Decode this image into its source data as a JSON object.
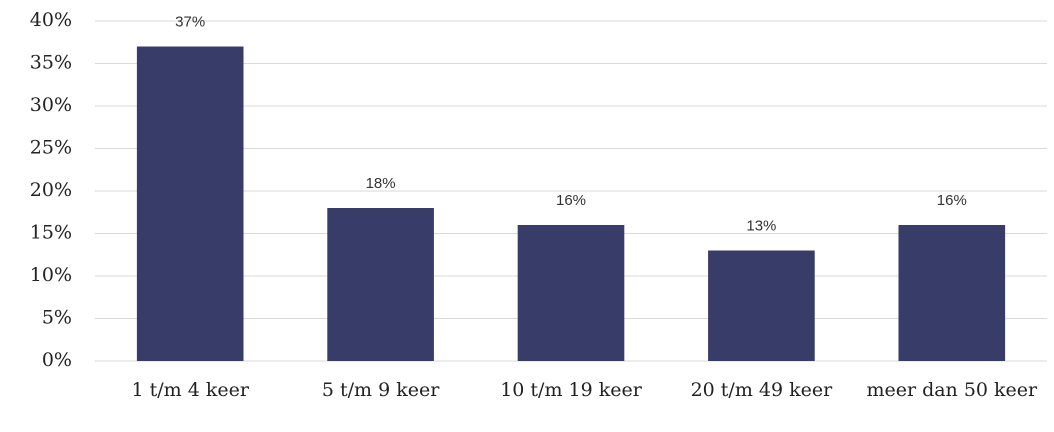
{
  "chart_data": {
    "type": "bar",
    "categories": [
      "1 t/m 4 keer",
      "5 t/m 9 keer",
      "10 t/m 19 keer",
      "20 t/m 49 keer",
      "meer dan 50 keer"
    ],
    "values": [
      37,
      18,
      16,
      13,
      16
    ],
    "value_labels": [
      "37%",
      "18%",
      "16%",
      "13%",
      "16%"
    ],
    "color": "#383c68",
    "ylim": [
      0,
      40
    ],
    "yticks": [
      {
        "value": 0,
        "label": "0%"
      },
      {
        "value": 5,
        "label": "5%"
      },
      {
        "value": 10,
        "label": "10%"
      },
      {
        "value": 15,
        "label": "15%"
      },
      {
        "value": 20,
        "label": "20%"
      },
      {
        "value": 25,
        "label": "25%"
      },
      {
        "value": 30,
        "label": "30%"
      },
      {
        "value": 35,
        "label": "35%"
      },
      {
        "value": 40,
        "label": "40%"
      }
    ],
    "grid": true
  }
}
